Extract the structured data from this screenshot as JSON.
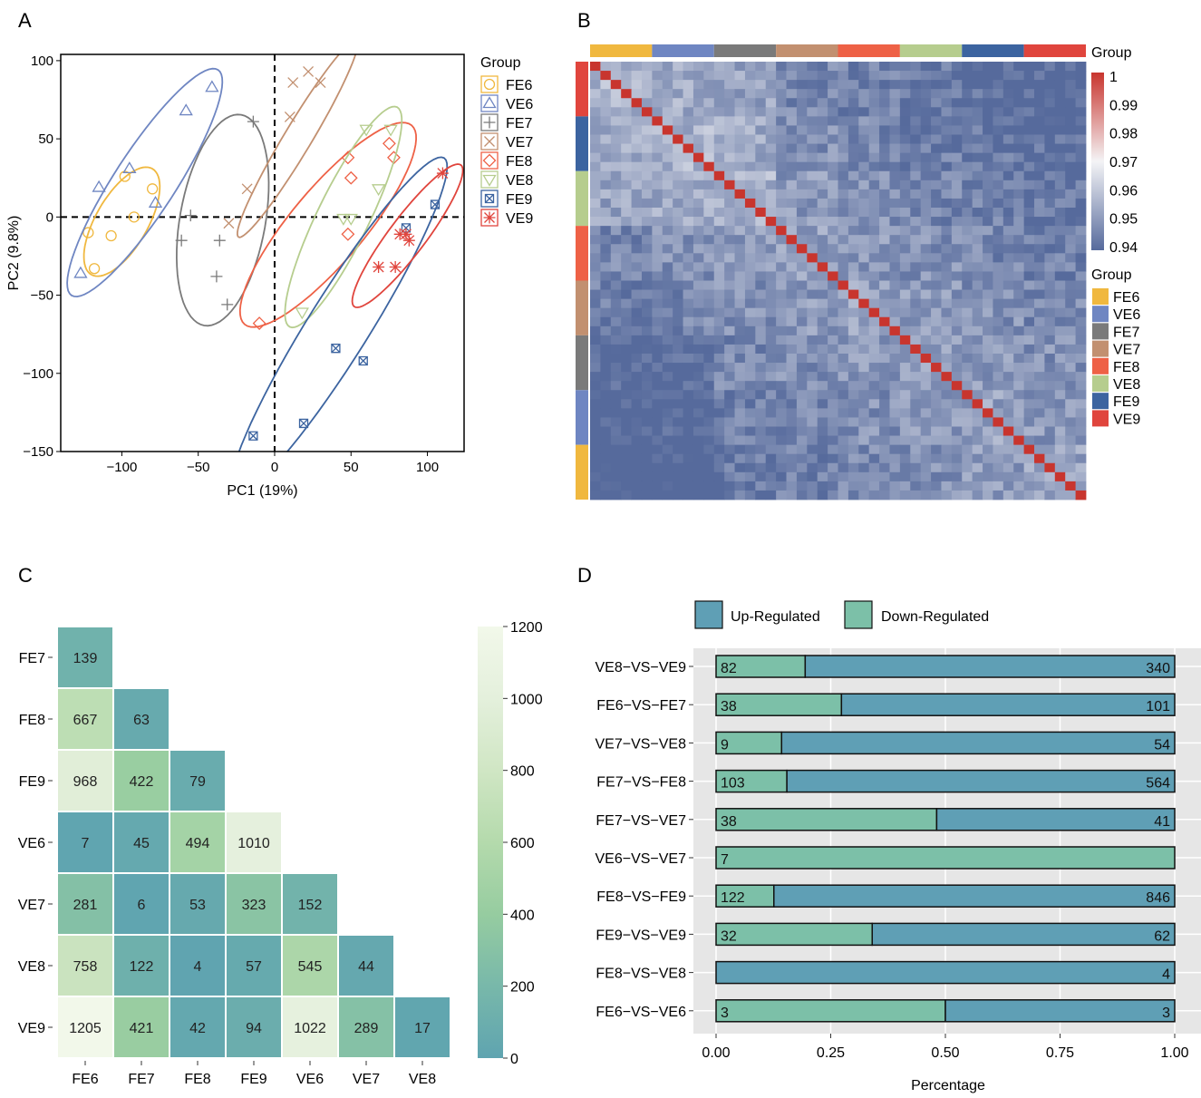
{
  "colors": {
    "FE6": "#f0b83f",
    "VE6": "#6f86c2",
    "FE7": "#7a7a7a",
    "VE7": "#c29070",
    "FE8": "#ee6146",
    "VE8": "#b6cd8e",
    "FE9": "#3c64a0",
    "VE9": "#e0453d",
    "up": "#5f9fb5",
    "down": "#7cc0a8",
    "panel_bg": "#e6e6e6"
  },
  "panel_labels": [
    "A",
    "B",
    "C",
    "D"
  ],
  "chart_data": [
    {
      "panel": "A",
      "type": "scatter",
      "xlabel": "PC1 (19%)",
      "ylabel": "PC2 (9.8%)",
      "xlim": [
        -140,
        124
      ],
      "ylim": [
        -150,
        104
      ],
      "x_ticks": [
        -100,
        -50,
        0,
        50,
        100
      ],
      "y_ticks": [
        100,
        50,
        0,
        -50,
        -100,
        -150
      ],
      "x_tick_labels": [
        "−100",
        "−50",
        "0",
        "50",
        "100"
      ],
      "y_tick_labels": [
        "100",
        "50",
        "0",
        "−50",
        "−100",
        "−150"
      ],
      "legend_title": "Group",
      "series": [
        {
          "name": "FE6",
          "marker": "circle",
          "points": [
            [
              -122,
              -10
            ],
            [
              -118,
              -33
            ],
            [
              -107,
              -12
            ],
            [
              -98,
              26
            ],
            [
              -92,
              0
            ],
            [
              -80,
              18
            ]
          ],
          "ellipse": {
            "cx": -100,
            "cy": -3,
            "rx": 40,
            "ry": 17,
            "angle": -60
          }
        },
        {
          "name": "VE6",
          "marker": "triangle",
          "points": [
            [
              -127,
              -36
            ],
            [
              -115,
              19
            ],
            [
              -95,
              31
            ],
            [
              -78,
              9
            ],
            [
              -58,
              68
            ],
            [
              -41,
              83
            ]
          ],
          "ellipse": {
            "cx": -85,
            "cy": 22,
            "rx": 88,
            "ry": 20,
            "angle": -57
          }
        },
        {
          "name": "FE7",
          "marker": "plus",
          "points": [
            [
              -61,
              -15
            ],
            [
              -55,
              1
            ],
            [
              -36,
              -15
            ],
            [
              -38,
              -38
            ],
            [
              -31,
              -56
            ],
            [
              -14,
              61
            ]
          ],
          "ellipse": {
            "cx": -34,
            "cy": -2,
            "rx": 70,
            "ry": 28,
            "angle": -80
          }
        },
        {
          "name": "VE7",
          "marker": "x",
          "points": [
            [
              -30,
              -4
            ],
            [
              -18,
              18
            ],
            [
              10,
              64
            ],
            [
              12,
              86
            ],
            [
              22,
              93
            ],
            [
              30,
              86
            ]
          ],
          "ellipse": {
            "cx": 15,
            "cy": 50,
            "rx": 75,
            "ry": 9,
            "angle": -59
          }
        },
        {
          "name": "FE8",
          "marker": "diamond",
          "points": [
            [
              -10,
              -68
            ],
            [
              48,
              -11
            ],
            [
              48,
              38
            ],
            [
              50,
              25
            ],
            [
              78,
              38
            ],
            [
              75,
              47
            ]
          ],
          "ellipse": {
            "cx": 35,
            "cy": -5,
            "rx": 85,
            "ry": 24,
            "angle": -50
          }
        },
        {
          "name": "VE8",
          "marker": "triangle-down",
          "points": [
            [
              18,
              -61
            ],
            [
              45,
              -1
            ],
            [
              50,
              -1
            ],
            [
              60,
              56
            ],
            [
              68,
              18
            ],
            [
              76,
              56
            ]
          ],
          "ellipse": {
            "cx": 45,
            "cy": 0,
            "rx": 80,
            "ry": 17,
            "angle": -64
          }
        },
        {
          "name": "FE9",
          "marker": "square-x",
          "points": [
            [
              -14,
              -140
            ],
            [
              19,
              -132
            ],
            [
              40,
              -84
            ],
            [
              58,
              -92
            ],
            [
              86,
              -7
            ],
            [
              105,
              8
            ]
          ],
          "ellipse": {
            "cx": 42,
            "cy": -70,
            "rx": 130,
            "ry": 20,
            "angle": -58
          }
        },
        {
          "name": "VE9",
          "marker": "asterisk",
          "points": [
            [
              68,
              -32
            ],
            [
              79,
              -32
            ],
            [
              82,
              -11
            ],
            [
              86,
              -11
            ],
            [
              88,
              -15
            ],
            [
              110,
              28
            ]
          ],
          "ellipse": {
            "cx": 87,
            "cy": -12,
            "rx": 58,
            "ry": 12,
            "angle": -53
          }
        }
      ]
    },
    {
      "panel": "B",
      "type": "heatmap",
      "title": "Group",
      "groups": [
        "FE6",
        "VE6",
        "FE7",
        "VE7",
        "FE8",
        "VE8",
        "FE9",
        "VE9"
      ],
      "top_bar_order": [
        "FE6",
        "VE6",
        "FE7",
        "VE7",
        "FE8",
        "VE8",
        "FE9",
        "VE9"
      ],
      "side_bar_order": [
        "VE9",
        "FE9",
        "VE8",
        "FE8",
        "VE7",
        "FE7",
        "VE6",
        "FE6"
      ],
      "n_samples": 48,
      "colorbar_ticks": [
        1,
        0.99,
        0.98,
        0.97,
        0.96,
        0.95,
        0.94
      ],
      "colorbar_labels": [
        "1",
        "0.99",
        "0.98",
        "0.97",
        "0.96",
        "0.95",
        "0.94"
      ],
      "value_range": [
        0.94,
        1.0
      ],
      "legend_title": "Group"
    },
    {
      "panel": "C",
      "type": "heatmap",
      "rows": [
        "FE7",
        "FE8",
        "FE9",
        "VE6",
        "VE7",
        "VE8",
        "VE9"
      ],
      "cols": [
        "FE6",
        "FE7",
        "FE8",
        "FE9",
        "VE6",
        "VE7",
        "VE8"
      ],
      "values": [
        [
          139
        ],
        [
          667,
          63
        ],
        [
          968,
          422,
          79
        ],
        [
          7,
          45,
          494,
          1010
        ],
        [
          281,
          6,
          53,
          323,
          152
        ],
        [
          758,
          122,
          4,
          57,
          545,
          44
        ],
        [
          1205,
          421,
          42,
          94,
          1022,
          289,
          17
        ]
      ],
      "colorbar_ticks": [
        1200,
        1000,
        800,
        600,
        400,
        200,
        0
      ],
      "colorbar_labels": [
        "1200",
        "1000",
        "800",
        "600",
        "400",
        "200",
        "0"
      ],
      "value_range": [
        0,
        1200
      ]
    },
    {
      "panel": "D",
      "type": "bar",
      "orientation": "horizontal",
      "stacked": "percent",
      "xlabel": "Percentage",
      "x_ticks": [
        0,
        0.25,
        0.5,
        0.75,
        1.0
      ],
      "x_tick_labels": [
        "0.00",
        "0.25",
        "0.50",
        "0.75",
        "1.00"
      ],
      "legend": [
        "Up-Regulated",
        "Down-Regulated"
      ],
      "categories": [
        "VE8−VS−VE9",
        "FE6−VS−FE7",
        "VE7−VS−VE8",
        "FE7−VS−FE8",
        "FE7−VS−VE7",
        "VE6−VS−VE7",
        "FE8−VS−FE9",
        "FE9−VS−VE9",
        "FE8−VS−VE8",
        "FE6−VS−VE6"
      ],
      "series": [
        {
          "name": "Down-Regulated",
          "values": [
            82,
            38,
            9,
            103,
            38,
            7,
            122,
            32,
            0,
            3
          ]
        },
        {
          "name": "Up-Regulated",
          "values": [
            340,
            101,
            54,
            564,
            41,
            0,
            846,
            62,
            4,
            3
          ]
        }
      ]
    }
  ]
}
